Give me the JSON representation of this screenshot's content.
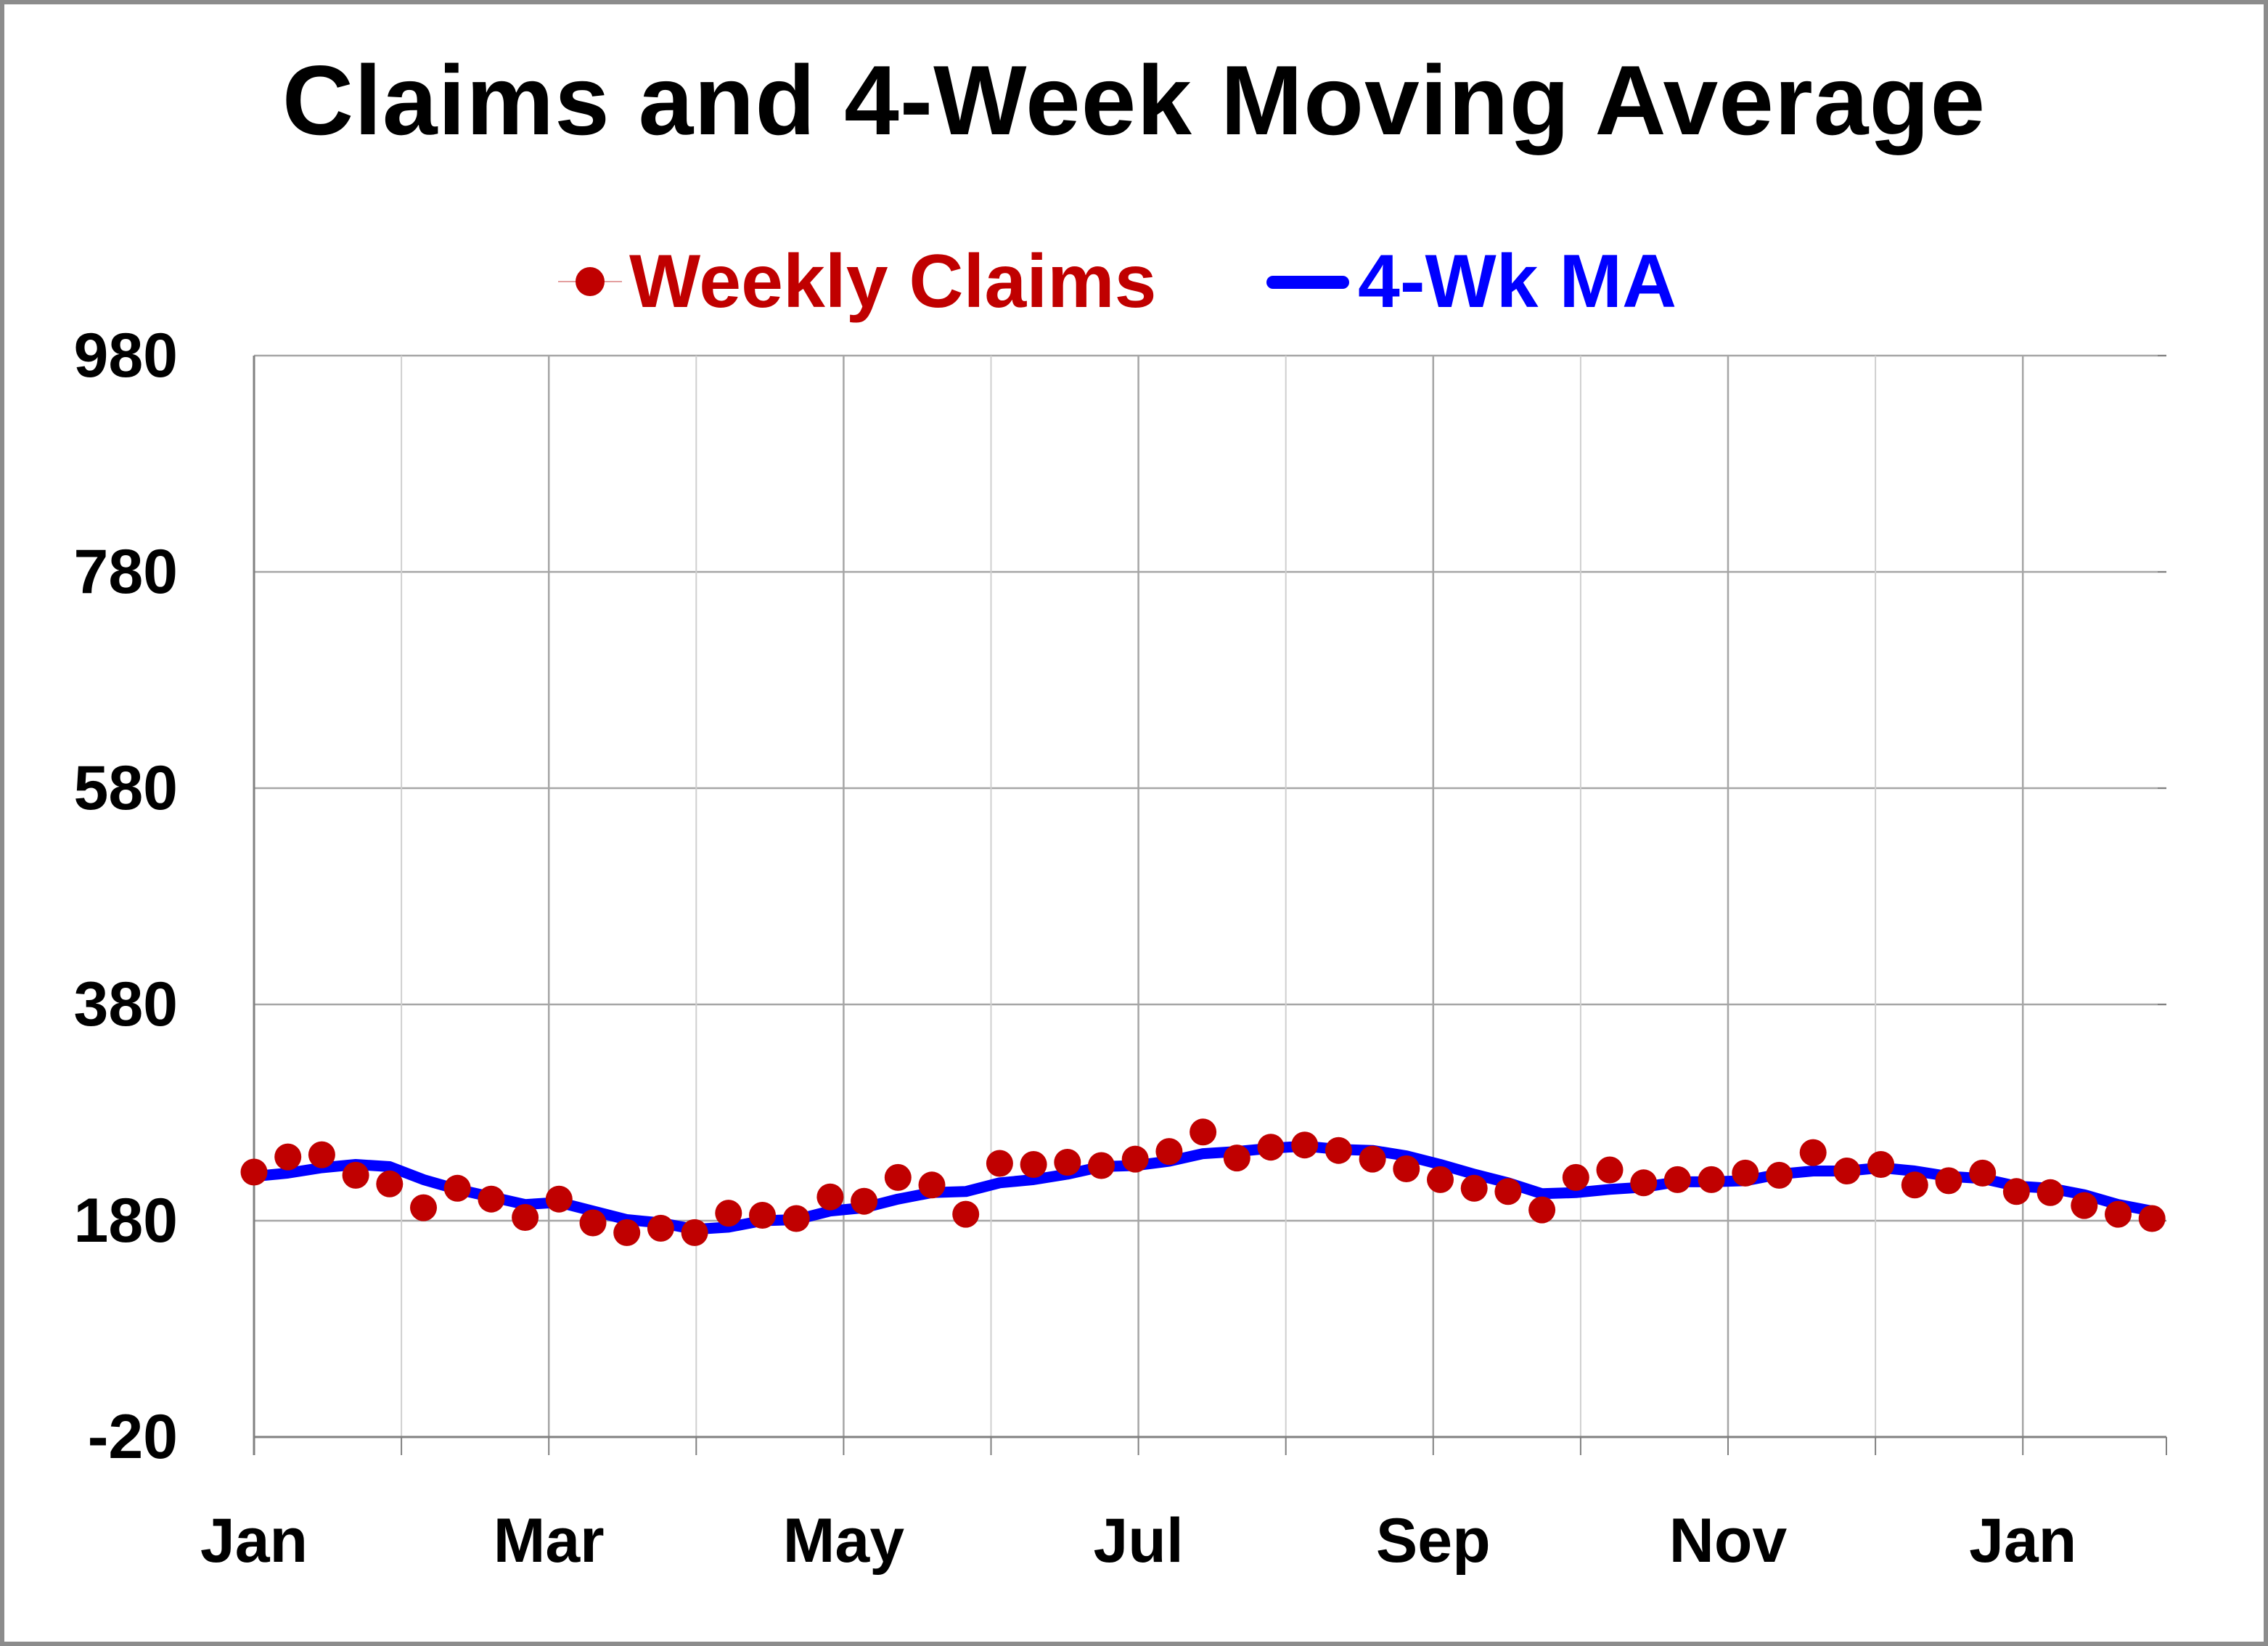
{
  "chart_data": {
    "type": "line",
    "title": "Claims and 4-Week Moving Average",
    "xlabel": "",
    "ylabel": "",
    "ylim": [
      -20,
      980
    ],
    "yticks": [
      980,
      780,
      580,
      380,
      180,
      -20
    ],
    "xticks": [
      "Jan",
      "Mar",
      "May",
      "Jul",
      "Sep",
      "Nov",
      "Jan"
    ],
    "grid": true,
    "legend_position": "top",
    "colors": {
      "weekly_claims": "#c00000",
      "moving_average": "#0000ff",
      "grid": "#a6a6a6",
      "axis": "#808080"
    },
    "series": [
      {
        "name": "Weekly Claims",
        "style": "markers",
        "values": [
          225,
          239,
          241,
          222,
          214,
          192,
          210,
          200,
          183,
          200,
          178,
          169,
          173,
          169,
          187,
          185,
          182,
          202,
          198,
          220,
          213,
          186,
          233,
          232,
          234,
          231,
          237,
          244,
          262,
          238,
          248,
          250,
          245,
          237,
          228,
          218,
          210,
          207,
          190,
          220,
          227,
          215,
          218,
          218,
          224,
          222,
          243,
          226,
          232,
          213,
          217,
          224,
          207,
          206,
          194,
          186,
          182
        ]
      },
      {
        "name": "4-Wk MA",
        "style": "line",
        "values": [
          221,
          224,
          229,
          232,
          230,
          218,
          209,
          202,
          195,
          197,
          189,
          181,
          178,
          172,
          174,
          180,
          181,
          189,
          192,
          200,
          206,
          207,
          215,
          218,
          223,
          230,
          231,
          235,
          242,
          244,
          247,
          249,
          246,
          245,
          240,
          232,
          223,
          215,
          205,
          206,
          209,
          211,
          216,
          216,
          217,
          223,
          226,
          226,
          229,
          226,
          221,
          219,
          212,
          210,
          204,
          195,
          189
        ]
      }
    ]
  }
}
